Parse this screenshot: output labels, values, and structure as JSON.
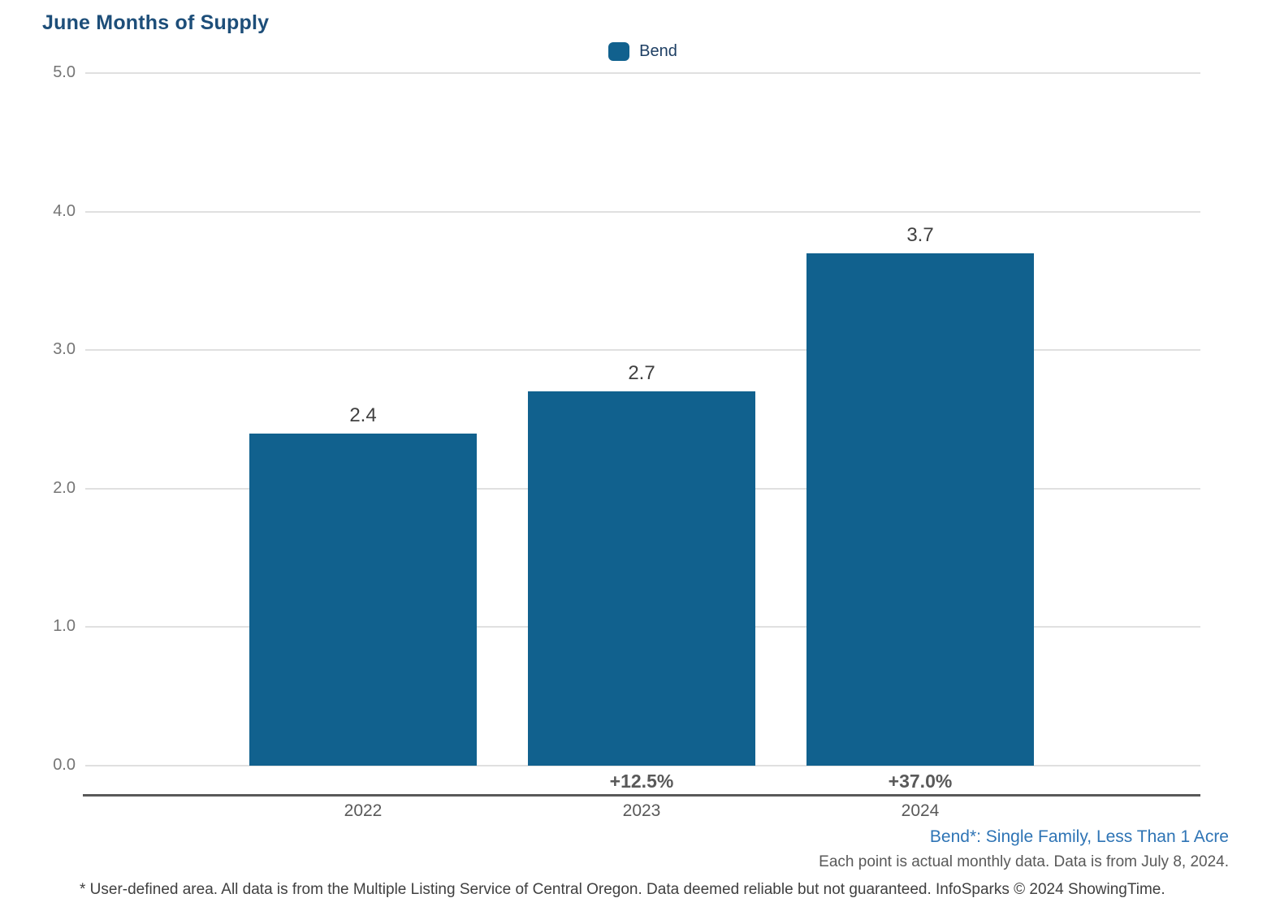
{
  "title": "June Months of Supply",
  "legend": {
    "label": "Bend"
  },
  "chart_data": {
    "type": "bar",
    "title": "June Months of Supply",
    "series_name": "Bend",
    "categories": [
      "2022",
      "2023",
      "2024"
    ],
    "values": [
      2.4,
      2.7,
      3.7
    ],
    "value_labels": [
      "2.4",
      "2.7",
      "3.7"
    ],
    "pct_change_labels": [
      "",
      "+12.5%",
      "+37.0%"
    ],
    "xlabel": "",
    "ylabel": "",
    "ylim": [
      0,
      5
    ],
    "yticks": [
      "0.0",
      "1.0",
      "2.0",
      "3.0",
      "4.0",
      "5.0"
    ],
    "grid": true,
    "legend_position": "top-center",
    "bar_color": "#11618e"
  },
  "footnotes": {
    "series_note": "Bend*: Single Family, Less Than 1 Acre",
    "data_note": "Each point is actual monthly data. Data is from July 8, 2024.",
    "disclaimer": "* User-defined area. All data is from the Multiple Listing Service of Central Oregon. Data deemed reliable but not guaranteed. InfoSparks © 2024 ShowingTime."
  },
  "colors": {
    "bar": "#11618e",
    "title": "#1d4e79",
    "legend_text": "#1d3e63",
    "gridline": "#e0e0e0",
    "axis_line": "#595959",
    "tick_text": "#757575",
    "label_text": "#404040",
    "series_note_text": "#2e74b5"
  }
}
